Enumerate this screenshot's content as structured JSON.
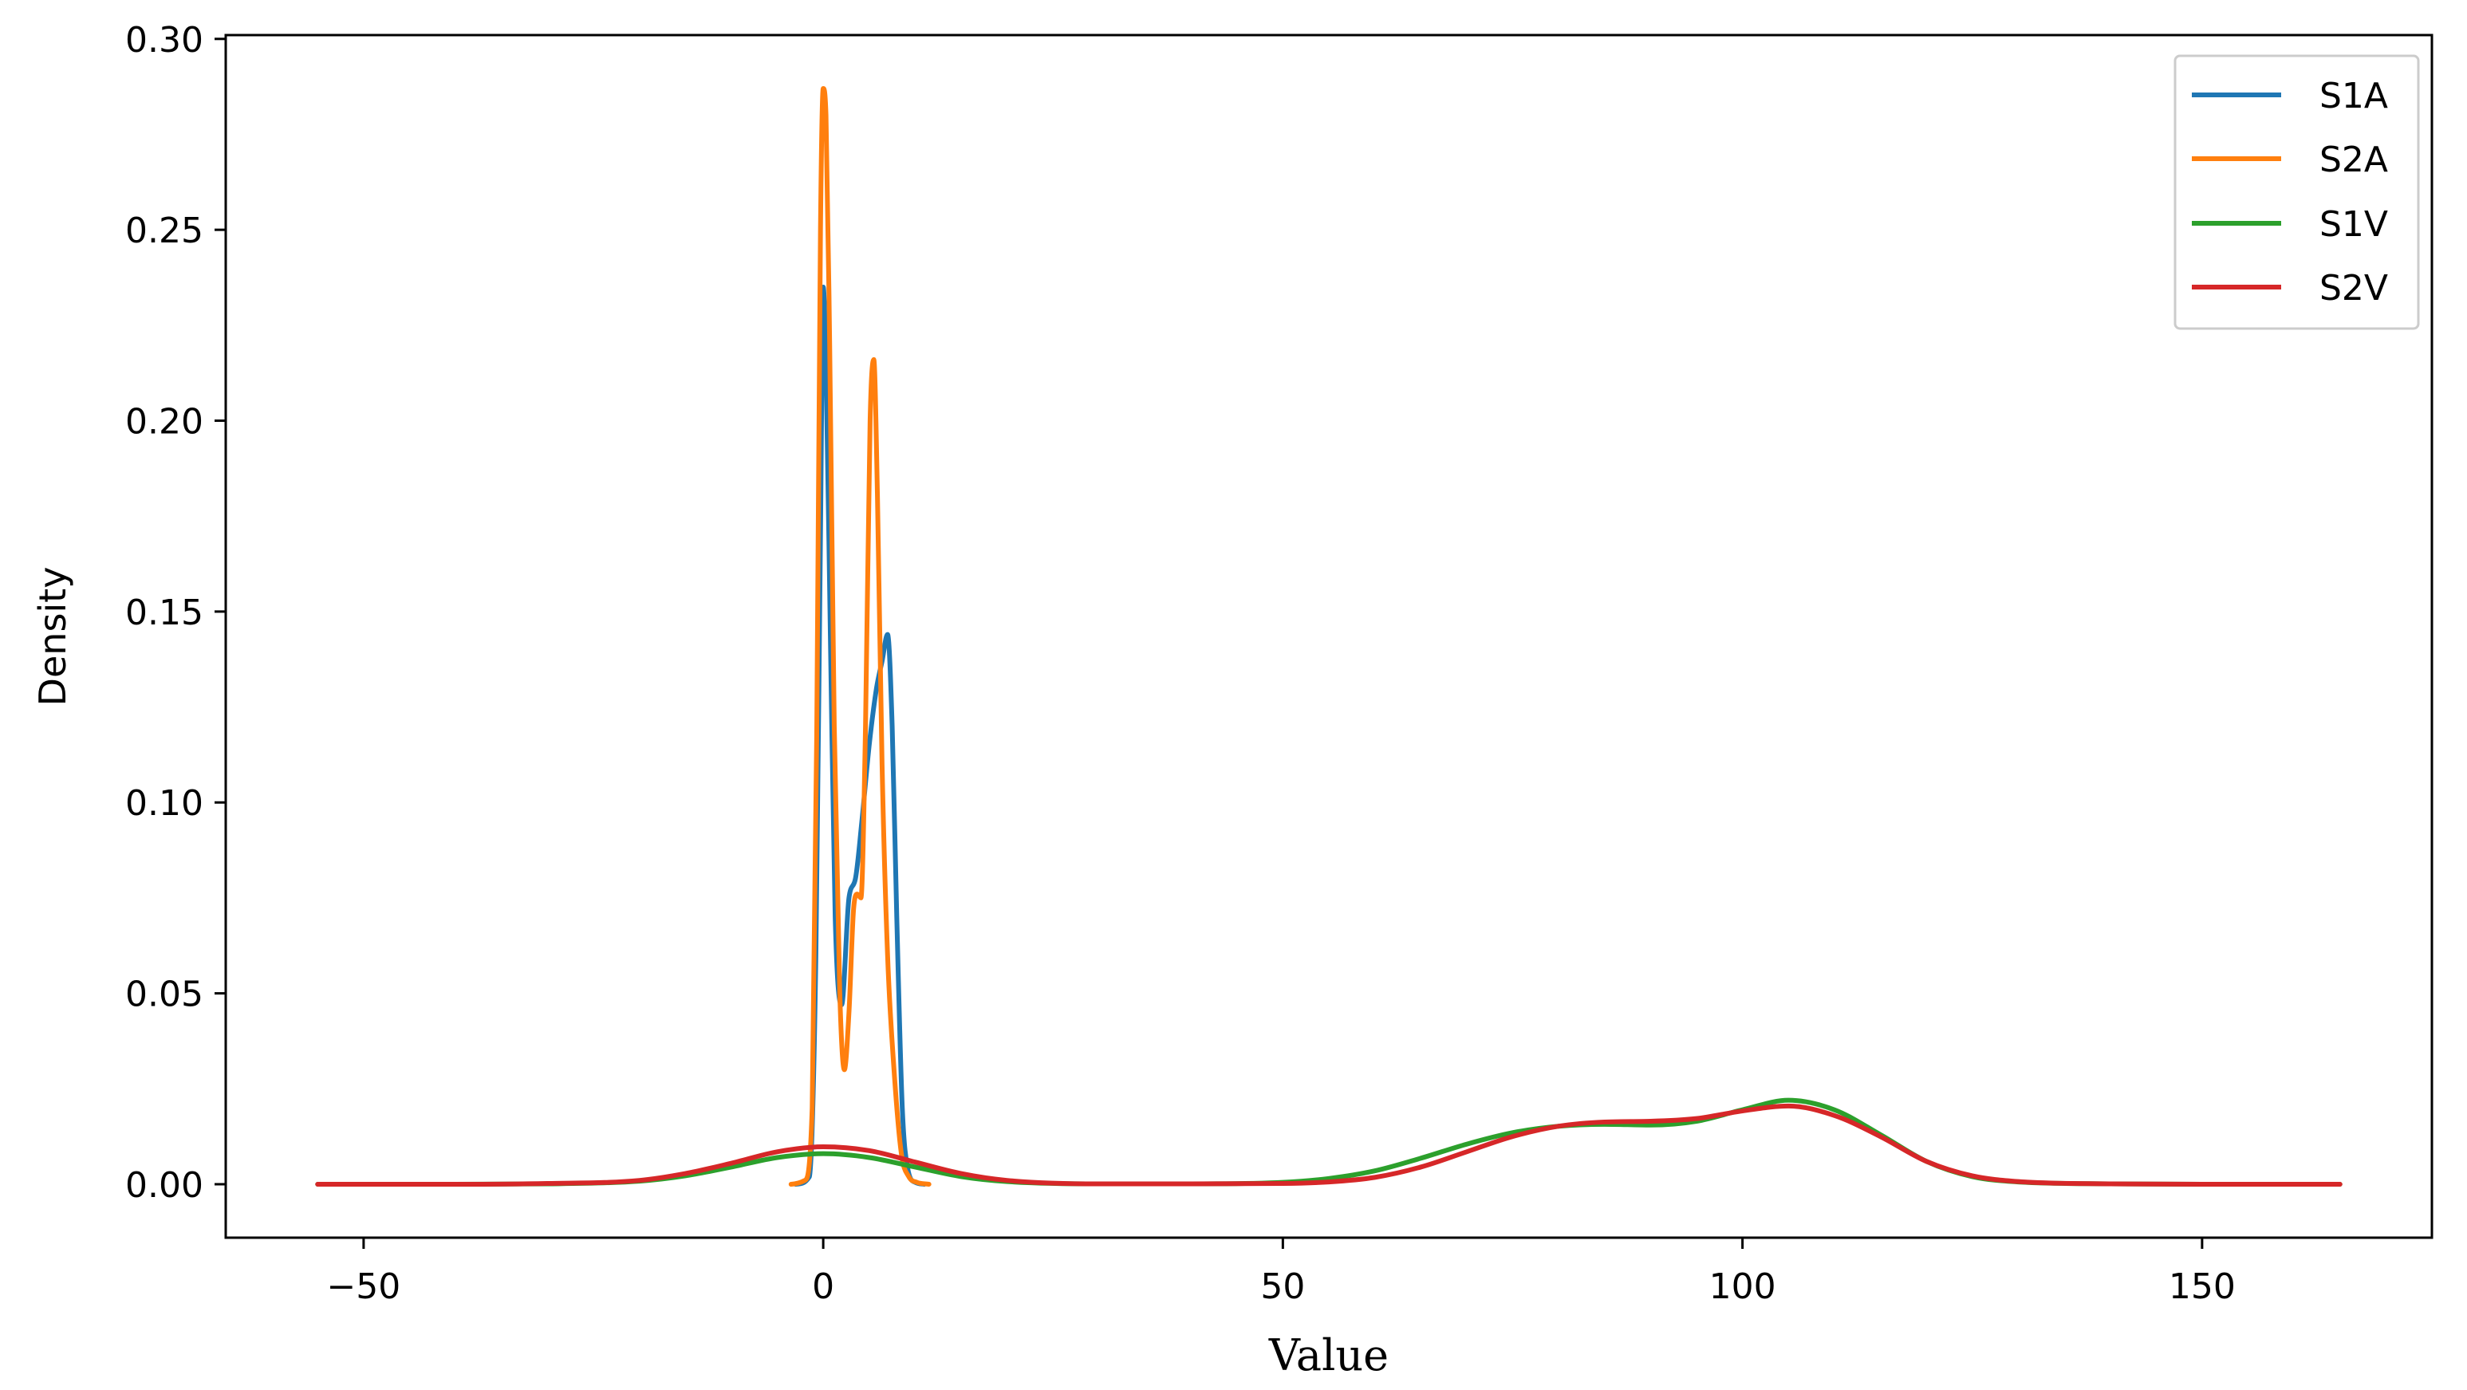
{
  "chart_data": {
    "type": "line",
    "title": "",
    "xlabel": "Value",
    "ylabel": "Density",
    "xlim": [
      -65,
      175
    ],
    "ylim": [
      -0.014,
      0.301
    ],
    "xticks": [
      -50,
      0,
      50,
      100,
      150
    ],
    "xtick_labels": [
      "−50",
      "0",
      "50",
      "100",
      "150"
    ],
    "yticks": [
      0.0,
      0.05,
      0.1,
      0.15,
      0.2,
      0.25,
      0.3
    ],
    "ytick_labels": [
      "0.00",
      "0.05",
      "0.10",
      "0.15",
      "0.20",
      "0.25",
      "0.30"
    ],
    "grid": false,
    "legend_position": "top-right",
    "series": [
      {
        "name": "S1A",
        "color": "#1f77b4",
        "x": [
          -3,
          -1.5,
          -0.8,
          -0.3,
          0,
          0.3,
          0.8,
          1.3,
          2,
          2.8,
          3.5,
          4.2,
          5,
          5.8,
          6.4,
          7,
          7.5,
          8,
          8.6,
          9.2,
          10,
          11
        ],
        "y": [
          0,
          0.002,
          0.06,
          0.17,
          0.235,
          0.215,
          0.14,
          0.07,
          0.047,
          0.075,
          0.08,
          0.095,
          0.115,
          0.13,
          0.137,
          0.144,
          0.12,
          0.07,
          0.02,
          0.004,
          0.0005,
          0
        ]
      },
      {
        "name": "S2A",
        "color": "#ff7f0e",
        "x": [
          -3.5,
          -2,
          -1.2,
          -0.7,
          -0.3,
          0,
          0.3,
          0.7,
          1.2,
          1.8,
          2.3,
          2.8,
          3.3,
          3.7,
          4.1,
          4.6,
          5.1,
          5.5,
          5.9,
          6.4,
          7,
          7.7,
          8.5,
          9.3,
          10.2,
          11.5
        ],
        "y": [
          0,
          0.001,
          0.02,
          0.12,
          0.25,
          0.287,
          0.28,
          0.22,
          0.12,
          0.05,
          0.03,
          0.045,
          0.072,
          0.076,
          0.075,
          0.12,
          0.2,
          0.216,
          0.18,
          0.11,
          0.06,
          0.03,
          0.008,
          0.002,
          0.0005,
          0
        ]
      },
      {
        "name": "S1V",
        "color": "#2ca02c",
        "x": [
          -55,
          -40,
          -30,
          -20,
          -15,
          -10,
          -5,
          0,
          5,
          10,
          15,
          20,
          30,
          40,
          50,
          55,
          60,
          65,
          70,
          75,
          80,
          85,
          90,
          95,
          100,
          105,
          110,
          115,
          120,
          125,
          130,
          140,
          150,
          165
        ],
        "y": [
          0,
          0,
          0.0001,
          0.0008,
          0.0022,
          0.0045,
          0.007,
          0.008,
          0.007,
          0.0045,
          0.002,
          0.0007,
          0.0001,
          0.0001,
          0.0005,
          0.0015,
          0.0035,
          0.0068,
          0.0105,
          0.0135,
          0.0152,
          0.0157,
          0.0155,
          0.0165,
          0.0195,
          0.022,
          0.0195,
          0.013,
          0.006,
          0.002,
          0.0006,
          0.0001,
          0,
          0
        ]
      },
      {
        "name": "S2V",
        "color": "#d62728",
        "x": [
          -55,
          -40,
          -30,
          -20,
          -15,
          -10,
          -5,
          0,
          5,
          10,
          15,
          20,
          30,
          40,
          50,
          55,
          60,
          65,
          70,
          75,
          80,
          85,
          90,
          95,
          100,
          105,
          110,
          115,
          120,
          125,
          130,
          140,
          150,
          165
        ],
        "y": [
          0,
          0,
          0.0002,
          0.001,
          0.0028,
          0.0055,
          0.0085,
          0.0098,
          0.0088,
          0.0058,
          0.0028,
          0.001,
          0.0001,
          0.0001,
          0.0002,
          0.0006,
          0.0018,
          0.0045,
          0.0085,
          0.0125,
          0.0152,
          0.0163,
          0.0165,
          0.0172,
          0.0192,
          0.0205,
          0.018,
          0.0125,
          0.006,
          0.0022,
          0.0007,
          0.0001,
          0,
          0
        ]
      }
    ]
  }
}
